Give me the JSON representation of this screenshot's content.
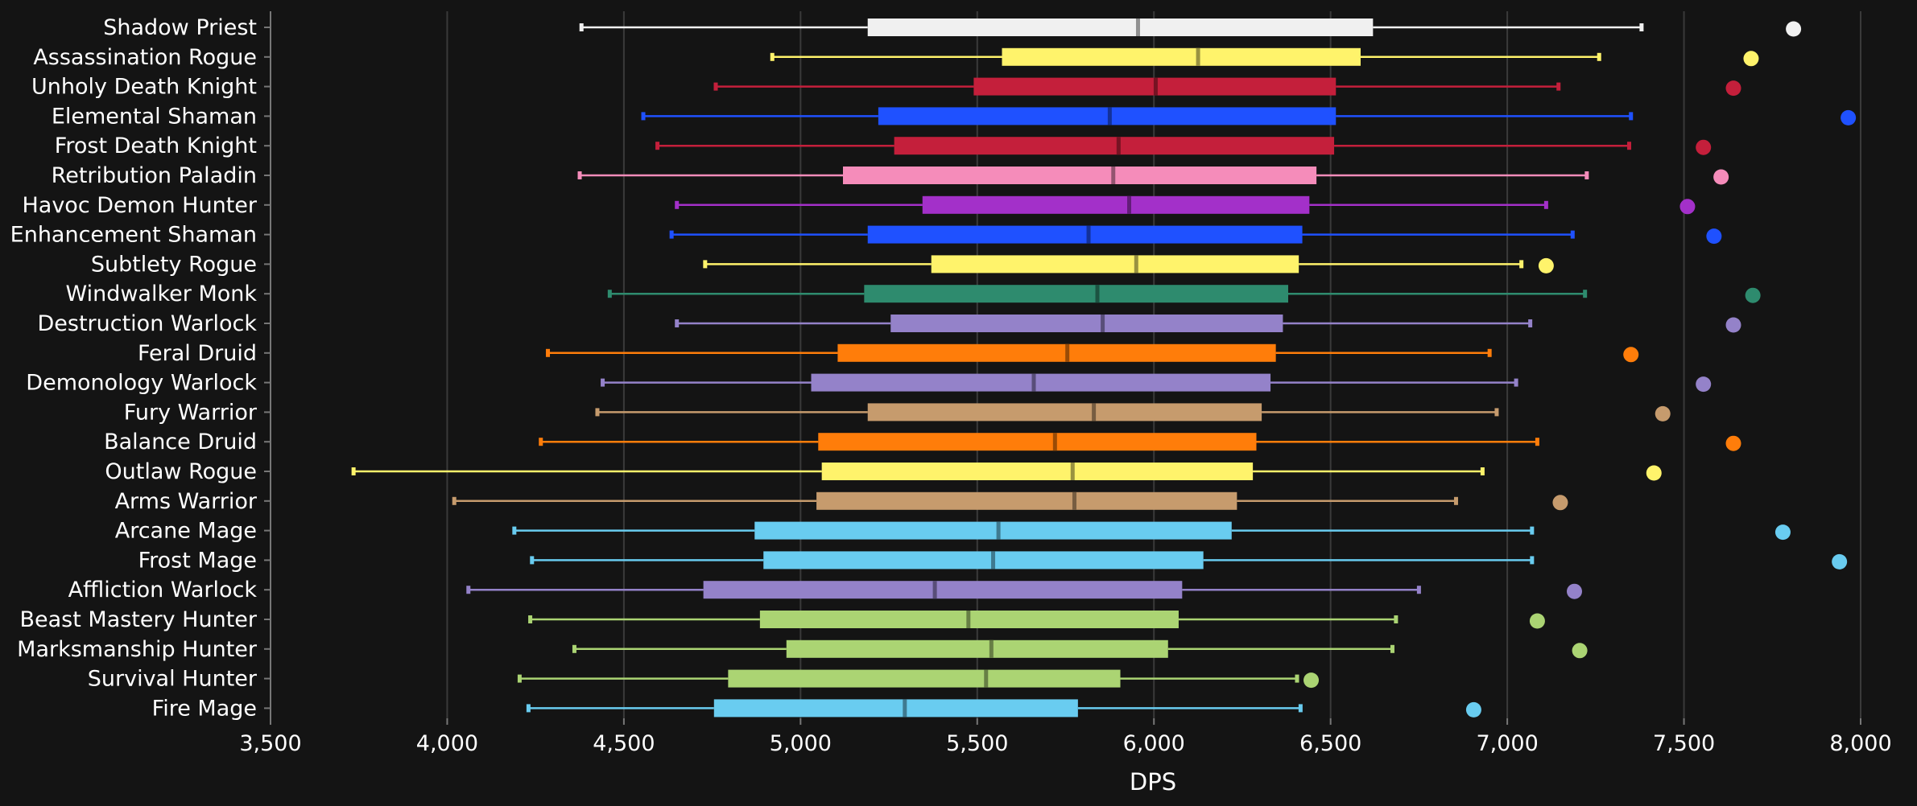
{
  "chart_data": {
    "type": "box",
    "xlabel": "DPS",
    "ylabel": "",
    "title": "",
    "xlim": [
      3500,
      8000
    ],
    "xticks": [
      3500,
      4000,
      4500,
      5000,
      5500,
      6000,
      6500,
      7000,
      7500,
      8000
    ],
    "xtick_labels": [
      "3,500",
      "4,000",
      "4,500",
      "5,000",
      "5,500",
      "6,000",
      "6,500",
      "7,000",
      "7,500",
      "8,000"
    ],
    "grid": "vertical",
    "series": [
      {
        "name": "Shadow Priest",
        "color": "#f0f0f0",
        "min": 4380,
        "q1": 5190,
        "median": 5955,
        "q3": 6620,
        "max": 7380,
        "outlier": 7810
      },
      {
        "name": "Assassination Rogue",
        "color": "#fff36b",
        "min": 4920,
        "q1": 5570,
        "median": 6125,
        "q3": 6585,
        "max": 7260,
        "outlier": 7690
      },
      {
        "name": "Unholy Death Knight",
        "color": "#c41f3b",
        "min": 4760,
        "q1": 5490,
        "median": 6005,
        "q3": 6515,
        "max": 7145,
        "outlier": 7640
      },
      {
        "name": "Elemental Shaman",
        "color": "#1f51ff",
        "min": 4555,
        "q1": 5220,
        "median": 5875,
        "q3": 6515,
        "max": 7350,
        "outlier": 7965
      },
      {
        "name": "Frost Death Knight",
        "color": "#c41f3b",
        "min": 4595,
        "q1": 5265,
        "median": 5900,
        "q3": 6510,
        "max": 7345,
        "outlier": 7555
      },
      {
        "name": "Retribution Paladin",
        "color": "#f58cba",
        "min": 4375,
        "q1": 5120,
        "median": 5885,
        "q3": 6460,
        "max": 7225,
        "outlier": 7605
      },
      {
        "name": "Havoc Demon Hunter",
        "color": "#a330c9",
        "min": 4650,
        "q1": 5345,
        "median": 5930,
        "q3": 6440,
        "max": 7110,
        "outlier": 7510
      },
      {
        "name": "Enhancement Shaman",
        "color": "#1f51ff",
        "min": 4635,
        "q1": 5190,
        "median": 5815,
        "q3": 6420,
        "max": 7185,
        "outlier": 7585
      },
      {
        "name": "Subtlety Rogue",
        "color": "#fff36b",
        "min": 4730,
        "q1": 5370,
        "median": 5950,
        "q3": 6410,
        "max": 7040,
        "outlier": 7110
      },
      {
        "name": "Windwalker Monk",
        "color": "#2e8b6e",
        "min": 4460,
        "q1": 5180,
        "median": 5840,
        "q3": 6380,
        "max": 7220,
        "outlier": 7695
      },
      {
        "name": "Destruction Warlock",
        "color": "#9482c9",
        "min": 4650,
        "q1": 5255,
        "median": 5855,
        "q3": 6365,
        "max": 7065,
        "outlier": 7640
      },
      {
        "name": "Feral Druid",
        "color": "#ff7d0a",
        "min": 4285,
        "q1": 5105,
        "median": 5755,
        "q3": 6345,
        "max": 6950,
        "outlier": 7350
      },
      {
        "name": "Demonology Warlock",
        "color": "#9482c9",
        "min": 4440,
        "q1": 5030,
        "median": 5660,
        "q3": 6330,
        "max": 7025,
        "outlier": 7555
      },
      {
        "name": "Fury Warrior",
        "color": "#c69b6d",
        "min": 4425,
        "q1": 5190,
        "median": 5830,
        "q3": 6305,
        "max": 6970,
        "outlier": 7440
      },
      {
        "name": "Balance Druid",
        "color": "#ff7d0a",
        "min": 4265,
        "q1": 5050,
        "median": 5720,
        "q3": 6290,
        "max": 7085,
        "outlier": 7640
      },
      {
        "name": "Outlaw Rogue",
        "color": "#fff36b",
        "min": 3735,
        "q1": 5060,
        "median": 5770,
        "q3": 6280,
        "max": 6930,
        "outlier": 7415
      },
      {
        "name": "Arms Warrior",
        "color": "#c69b6d",
        "min": 4020,
        "q1": 5045,
        "median": 5775,
        "q3": 6235,
        "max": 6855,
        "outlier": 7150
      },
      {
        "name": "Arcane Mage",
        "color": "#69ccf0",
        "min": 4190,
        "q1": 4870,
        "median": 5560,
        "q3": 6220,
        "max": 7070,
        "outlier": 7780
      },
      {
        "name": "Frost Mage",
        "color": "#69ccf0",
        "min": 4240,
        "q1": 4895,
        "median": 5545,
        "q3": 6140,
        "max": 7070,
        "outlier": 7940
      },
      {
        "name": "Affliction Warlock",
        "color": "#9482c9",
        "min": 4060,
        "q1": 4725,
        "median": 5380,
        "q3": 6080,
        "max": 6750,
        "outlier": 7190
      },
      {
        "name": "Beast Mastery Hunter",
        "color": "#abd473",
        "min": 4235,
        "q1": 4885,
        "median": 5475,
        "q3": 6070,
        "max": 6685,
        "outlier": 7085
      },
      {
        "name": "Marksmanship Hunter",
        "color": "#abd473",
        "min": 4360,
        "q1": 4960,
        "median": 5540,
        "q3": 6040,
        "max": 6675,
        "outlier": 7205
      },
      {
        "name": "Survival Hunter",
        "color": "#abd473",
        "min": 4205,
        "q1": 4795,
        "median": 5525,
        "q3": 5905,
        "max": 6405,
        "outlier": 6445
      },
      {
        "name": "Fire Mage",
        "color": "#69ccf0",
        "min": 4230,
        "q1": 4755,
        "median": 5295,
        "q3": 5785,
        "max": 6415,
        "outlier": 6905
      }
    ]
  }
}
